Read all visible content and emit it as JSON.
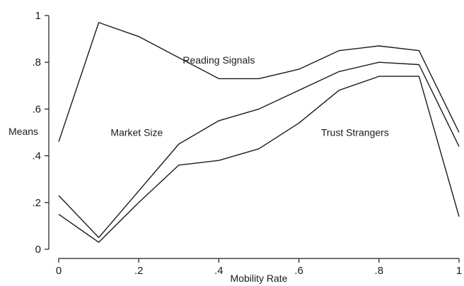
{
  "chart_data": {
    "type": "line",
    "xlabel": "Mobility Rate",
    "ylabel": "Means",
    "xlim": [
      0,
      1
    ],
    "ylim": [
      0,
      1
    ],
    "x": [
      0,
      0.1,
      0.2,
      0.3,
      0.4,
      0.5,
      0.6,
      0.7,
      0.8,
      0.9,
      1.0
    ],
    "xticks": [
      0,
      0.2,
      0.4,
      0.6,
      0.8,
      1
    ],
    "xtick_labels": [
      "0",
      ".2",
      ".4",
      ".6",
      ".8",
      "1"
    ],
    "yticks": [
      0,
      0.2,
      0.4,
      0.6,
      0.8,
      1
    ],
    "ytick_labels": [
      "0",
      ".2",
      ".4",
      ".6",
      ".8",
      "1"
    ],
    "grid": false,
    "legend": "none",
    "series": [
      {
        "name": "Reading Signals",
        "values": [
          0.46,
          0.97,
          0.91,
          0.82,
          0.73,
          0.73,
          0.77,
          0.85,
          0.87,
          0.85,
          0.5
        ],
        "label_at": [
          0.4,
          0.81
        ]
      },
      {
        "name": "Market Size",
        "values": [
          0.23,
          0.05,
          0.25,
          0.45,
          0.55,
          0.6,
          0.68,
          0.76,
          0.8,
          0.79,
          0.44
        ],
        "label_at": [
          0.195,
          0.5
        ]
      },
      {
        "name": "Trust Strangers",
        "values": [
          0.15,
          0.03,
          0.2,
          0.36,
          0.38,
          0.43,
          0.54,
          0.68,
          0.74,
          0.74,
          0.14
        ],
        "label_at": [
          0.74,
          0.5
        ]
      }
    ]
  }
}
